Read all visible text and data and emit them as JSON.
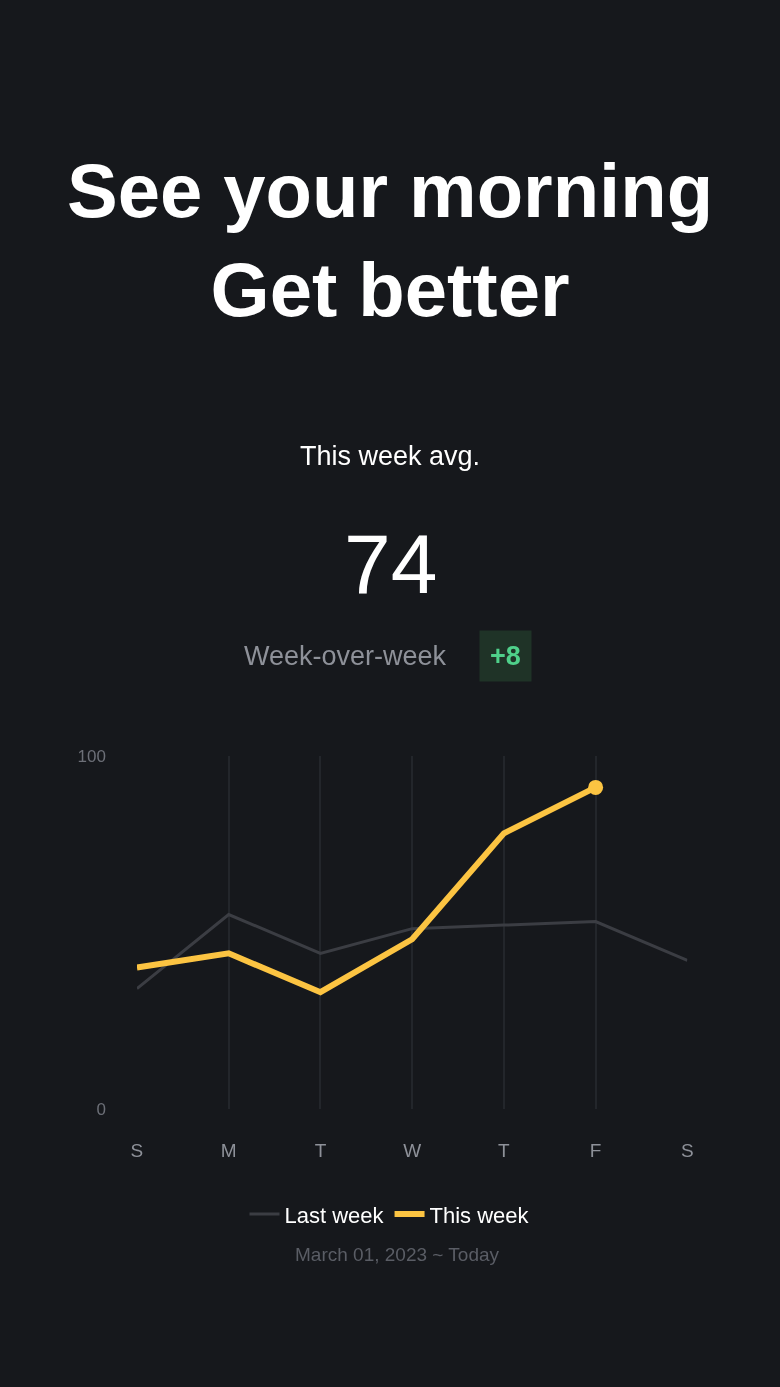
{
  "chart_data": {
    "type": "line",
    "title": "See your morning\nGet better",
    "annotations": [
      "This week avg.",
      "74",
      "Week-over-week",
      "+8",
      "March 01, 2023 ~ Today"
    ],
    "categories": [
      "S",
      "M",
      "T",
      "W",
      "T",
      "F",
      "S"
    ],
    "series": [
      {
        "name": "Last week",
        "color": "#3b3d43",
        "values": [
          34,
          55,
          44,
          51,
          52,
          53,
          42
        ]
      },
      {
        "name": "This week",
        "color": "#fcc442",
        "values": [
          40,
          44,
          33,
          48,
          78,
          91,
          null
        ]
      }
    ],
    "ylim": [
      0,
      100
    ],
    "yticks": [
      0,
      100
    ],
    "grid": "x",
    "legend": "bottom",
    "marker": "none",
    "line_style": "solid"
  }
}
